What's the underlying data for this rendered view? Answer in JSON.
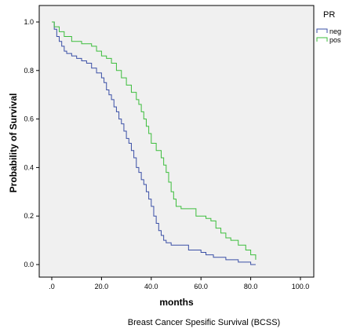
{
  "chart_data": {
    "type": "line",
    "step": true,
    "xlabel": "months",
    "ylabel": "Probability of Survival",
    "caption": "Breast Cancer Spesific Survival (BCSS)",
    "xlim": [
      0,
      100
    ],
    "ylim": [
      0,
      1.0
    ],
    "x_ticks": [
      0,
      20,
      40,
      60,
      80,
      100
    ],
    "x_tick_labels": [
      ".0",
      "20.0",
      "40.0",
      "60.0",
      "80.0",
      "100.0"
    ],
    "y_ticks": [
      0,
      0.2,
      0.4,
      0.6,
      0.8,
      1.0
    ],
    "y_tick_labels": [
      "0.0",
      "0.2",
      "0.4",
      "0.6",
      "0.8",
      "1.0"
    ],
    "grid": false,
    "legend": {
      "title": "PR",
      "position": "right"
    },
    "colors": {
      "plot_bg": "#f0f0f0",
      "neg": "#3a4fa6",
      "pos": "#3cbd3c"
    },
    "series": [
      {
        "name": "neg",
        "x": [
          0,
          1,
          2,
          3,
          4,
          5,
          6,
          8,
          10,
          12,
          14,
          16,
          18,
          20,
          21,
          22,
          23,
          24,
          25,
          26,
          27,
          28,
          29,
          30,
          31,
          32,
          33,
          34,
          35,
          36,
          37,
          38,
          39,
          40,
          41,
          42,
          43,
          44,
          45,
          46,
          47,
          48,
          50,
          55,
          60,
          62,
          65,
          70,
          75,
          78,
          80,
          82
        ],
        "y": [
          1.0,
          0.97,
          0.94,
          0.92,
          0.9,
          0.88,
          0.87,
          0.86,
          0.85,
          0.84,
          0.83,
          0.81,
          0.79,
          0.77,
          0.75,
          0.72,
          0.7,
          0.68,
          0.65,
          0.63,
          0.6,
          0.58,
          0.55,
          0.52,
          0.5,
          0.47,
          0.44,
          0.4,
          0.38,
          0.35,
          0.33,
          0.3,
          0.27,
          0.24,
          0.2,
          0.17,
          0.14,
          0.12,
          0.1,
          0.09,
          0.09,
          0.08,
          0.08,
          0.06,
          0.05,
          0.04,
          0.03,
          0.02,
          0.01,
          0.01,
          0.0,
          0.0
        ]
      },
      {
        "name": "pos",
        "x": [
          0,
          1,
          3,
          5,
          8,
          12,
          16,
          18,
          20,
          22,
          24,
          26,
          28,
          30,
          32,
          34,
          35,
          36,
          37,
          38,
          39,
          40,
          42,
          44,
          45,
          46,
          47,
          48,
          49,
          50,
          52,
          56,
          58,
          62,
          64,
          66,
          68,
          70,
          72,
          75,
          78,
          80,
          82
        ],
        "y": [
          1.0,
          0.98,
          0.96,
          0.94,
          0.92,
          0.91,
          0.9,
          0.88,
          0.86,
          0.85,
          0.83,
          0.8,
          0.77,
          0.74,
          0.71,
          0.68,
          0.66,
          0.63,
          0.6,
          0.57,
          0.54,
          0.5,
          0.47,
          0.44,
          0.41,
          0.38,
          0.34,
          0.3,
          0.27,
          0.24,
          0.23,
          0.23,
          0.2,
          0.19,
          0.18,
          0.15,
          0.13,
          0.11,
          0.1,
          0.08,
          0.06,
          0.04,
          0.02
        ]
      }
    ]
  }
}
